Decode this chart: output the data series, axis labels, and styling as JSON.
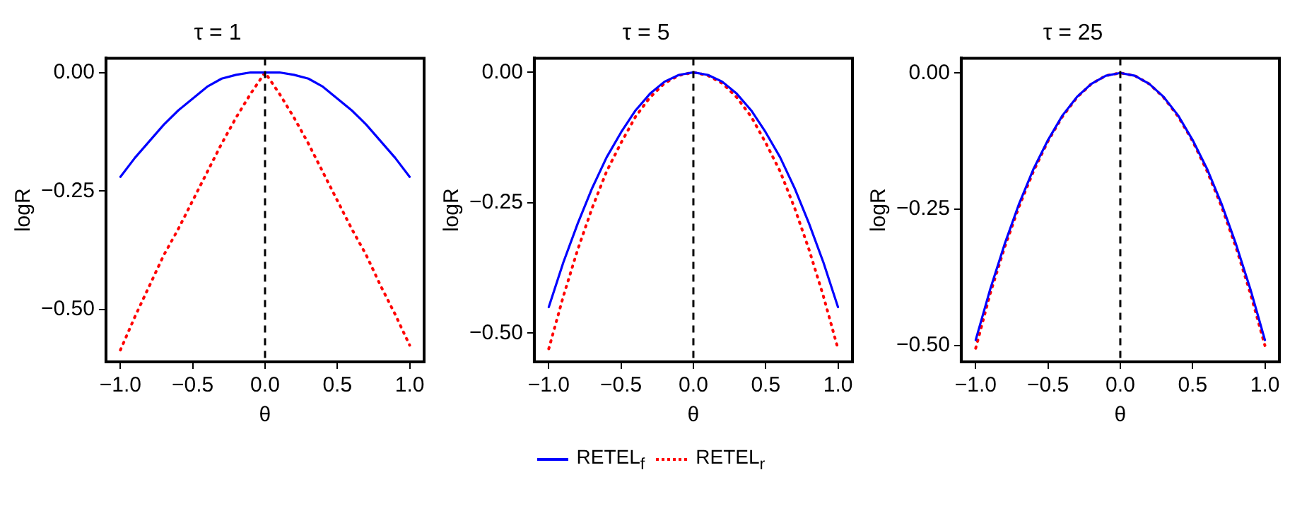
{
  "chart_data": [
    {
      "type": "line",
      "title": "τ = 1",
      "xlabel": "θ",
      "ylabel": "logR",
      "x": [
        -1,
        -0.9,
        -0.8,
        -0.7,
        -0.6,
        -0.5,
        -0.4,
        -0.3,
        -0.2,
        -0.1,
        0,
        0.1,
        0.2,
        0.3,
        0.4,
        0.5,
        0.6,
        0.7,
        0.8,
        0.9,
        1
      ],
      "series": [
        {
          "name": "RETEL$_{f}$",
          "color": "#0000ff",
          "line_style": "solid",
          "values": [
            -0.22,
            -0.18,
            -0.145,
            -0.11,
            -0.08,
            -0.055,
            -0.03,
            -0.013,
            -0.005,
            0,
            0,
            0,
            -0.005,
            -0.013,
            -0.03,
            -0.055,
            -0.08,
            -0.11,
            -0.145,
            -0.18,
            -0.22
          ]
        },
        {
          "name": "RETEL$_{r}$",
          "color": "#ff0000",
          "line_style": "dotted",
          "values": [
            -0.585,
            -0.515,
            -0.45,
            -0.385,
            -0.33,
            -0.27,
            -0.21,
            -0.15,
            -0.095,
            -0.045,
            0,
            -0.045,
            -0.095,
            -0.15,
            -0.21,
            -0.27,
            -0.33,
            -0.385,
            -0.45,
            -0.51,
            -0.575
          ]
        }
      ],
      "xlim": [
        -1.1,
        1.1
      ],
      "xticks": [
        {
          "value": -1,
          "label": "−1.0"
        },
        {
          "value": -0.5,
          "label": "−0.5"
        },
        {
          "value": 0,
          "label": "0.0"
        },
        {
          "value": 0.5,
          "label": "0.5"
        },
        {
          "value": 1,
          "label": "1.0"
        }
      ],
      "ylim": [
        -0.61,
        0.03
      ],
      "yticks": [
        {
          "value": -0.5,
          "label": "−0.50"
        },
        {
          "value": -0.25,
          "label": "−0.25"
        },
        {
          "value": 0,
          "label": "0.00"
        }
      ],
      "ref_lines": [
        {
          "axis": "x",
          "value": 0,
          "color": "#000000",
          "line_style": "dashed"
        }
      ],
      "legend": "bottom"
    },
    {
      "type": "line",
      "title": "τ = 5",
      "xlabel": "θ",
      "ylabel": "logR",
      "x": [
        -1,
        -0.9,
        -0.8,
        -0.7,
        -0.6,
        -0.5,
        -0.4,
        -0.3,
        -0.2,
        -0.1,
        0,
        0.1,
        0.2,
        0.3,
        0.4,
        0.5,
        0.6,
        0.7,
        0.8,
        0.9,
        1
      ],
      "series": [
        {
          "name": "RETEL$_{f}$",
          "color": "#0000ff",
          "line_style": "solid",
          "values": [
            -0.45,
            -0.365,
            -0.29,
            -0.222,
            -0.163,
            -0.115,
            -0.073,
            -0.041,
            -0.018,
            -0.005,
            0,
            -0.005,
            -0.018,
            -0.041,
            -0.073,
            -0.115,
            -0.163,
            -0.222,
            -0.29,
            -0.365,
            -0.45
          ]
        },
        {
          "name": "RETEL$_{r}$",
          "color": "#ff0000",
          "line_style": "dotted",
          "values": [
            -0.53,
            -0.43,
            -0.34,
            -0.26,
            -0.19,
            -0.135,
            -0.085,
            -0.048,
            -0.021,
            -0.006,
            0,
            -0.006,
            -0.021,
            -0.048,
            -0.085,
            -0.135,
            -0.19,
            -0.26,
            -0.34,
            -0.43,
            -0.53
          ]
        }
      ],
      "xlim": [
        -1.1,
        1.1
      ],
      "xticks": [
        {
          "value": -1,
          "label": "−1.0"
        },
        {
          "value": -0.5,
          "label": "−0.5"
        },
        {
          "value": 0,
          "label": "0.0"
        },
        {
          "value": 0.5,
          "label": "0.5"
        },
        {
          "value": 1,
          "label": "1.0"
        }
      ],
      "ylim": [
        -0.555,
        0.027
      ],
      "yticks": [
        {
          "value": -0.5,
          "label": "−0.50"
        },
        {
          "value": -0.25,
          "label": "−0.25"
        },
        {
          "value": 0,
          "label": "0.00"
        }
      ],
      "ref_lines": [
        {
          "axis": "x",
          "value": 0,
          "color": "#000000",
          "line_style": "dashed"
        }
      ],
      "legend": "bottom"
    },
    {
      "type": "line",
      "title": "τ = 25",
      "xlabel": "θ",
      "ylabel": "logR",
      "x": [
        -1,
        -0.9,
        -0.8,
        -0.7,
        -0.6,
        -0.5,
        -0.4,
        -0.3,
        -0.2,
        -0.1,
        0,
        0.1,
        0.2,
        0.3,
        0.4,
        0.5,
        0.6,
        0.7,
        0.8,
        0.9,
        1
      ],
      "series": [
        {
          "name": "RETEL$_{f}$",
          "color": "#0000ff",
          "line_style": "solid",
          "values": [
            -0.49,
            -0.397,
            -0.314,
            -0.24,
            -0.176,
            -0.123,
            -0.078,
            -0.044,
            -0.02,
            -0.005,
            0,
            -0.005,
            -0.02,
            -0.044,
            -0.078,
            -0.123,
            -0.176,
            -0.24,
            -0.314,
            -0.397,
            -0.49
          ]
        },
        {
          "name": "RETEL$_{r}$",
          "color": "#ff0000",
          "line_style": "dotted",
          "values": [
            -0.505,
            -0.405,
            -0.32,
            -0.245,
            -0.18,
            -0.125,
            -0.08,
            -0.045,
            -0.02,
            -0.005,
            0,
            -0.005,
            -0.02,
            -0.045,
            -0.08,
            -0.125,
            -0.18,
            -0.245,
            -0.32,
            -0.405,
            -0.5
          ]
        }
      ],
      "xlim": [
        -1.1,
        1.1
      ],
      "xticks": [
        {
          "value": -1,
          "label": "−1.0"
        },
        {
          "value": -0.5,
          "label": "−0.5"
        },
        {
          "value": 0,
          "label": "0.0"
        },
        {
          "value": 0.5,
          "label": "0.5"
        },
        {
          "value": 1,
          "label": "1.0"
        }
      ],
      "ylim": [
        -0.53,
        0.027
      ],
      "yticks": [
        {
          "value": -0.5,
          "label": "−0.50"
        },
        {
          "value": -0.25,
          "label": "−0.25"
        },
        {
          "value": 0,
          "label": "0.00"
        }
      ],
      "ref_lines": [
        {
          "axis": "x",
          "value": 0,
          "color": "#000000",
          "line_style": "dashed"
        }
      ],
      "legend": "bottom"
    }
  ]
}
